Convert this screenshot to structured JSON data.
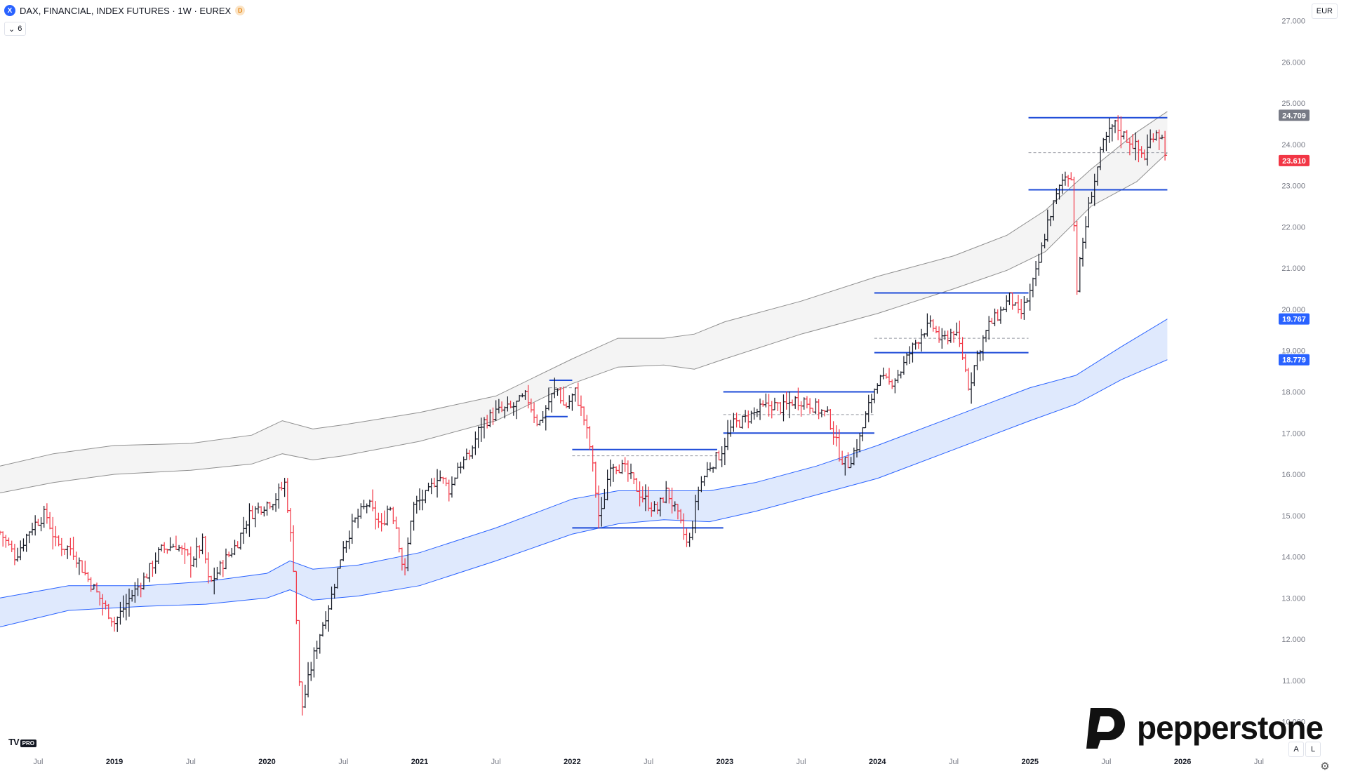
{
  "header": {
    "symbol_icon": "X",
    "title": "DAX, FINANCIAL, INDEX FUTURES · 1W · EUREX",
    "badge": "D",
    "indicator_count": "6",
    "currency": "EUR"
  },
  "branding": {
    "tv_logo": "TV",
    "tv_pro": "PRO",
    "pepperstone": "pepperstone"
  },
  "controls": {
    "auto": "A",
    "log": "L",
    "settings_icon": "gear-icon"
  },
  "colors": {
    "up": "#131722",
    "down": "#f23645",
    "blue": "#2962ff",
    "gray_band": "#8f8f8f",
    "blue_band_fill": "#dfe9fd"
  },
  "chart_data": {
    "type": "ohlc",
    "x_axis": {
      "start": 2018.25,
      "end": 2026.85,
      "ticks": [
        {
          "label": "Jul",
          "x": 2018.5
        },
        {
          "label": "2019",
          "x": 2019.0
        },
        {
          "label": "Jul",
          "x": 2019.5
        },
        {
          "label": "2020",
          "x": 2020.0
        },
        {
          "label": "Jul",
          "x": 2020.5
        },
        {
          "label": "2021",
          "x": 2021.0
        },
        {
          "label": "Jul",
          "x": 2021.5
        },
        {
          "label": "2022",
          "x": 2022.0
        },
        {
          "label": "Jul",
          "x": 2022.5
        },
        {
          "label": "2023",
          "x": 2023.0
        },
        {
          "label": "Jul",
          "x": 2023.5
        },
        {
          "label": "2024",
          "x": 2024.0
        },
        {
          "label": "Jul",
          "x": 2024.5
        },
        {
          "label": "2025",
          "x": 2025.0
        },
        {
          "label": "Jul",
          "x": 2025.5
        },
        {
          "label": "2026",
          "x": 2026.0
        },
        {
          "label": "Jul",
          "x": 2026.5
        }
      ]
    },
    "y_axis": {
      "min": 9500,
      "max": 27300,
      "ticks": [
        {
          "label": "27.000",
          "v": 27000
        },
        {
          "label": "26.000",
          "v": 26000
        },
        {
          "label": "25.000",
          "v": 25000
        },
        {
          "label": "24.000",
          "v": 24000
        },
        {
          "label": "23.000",
          "v": 23000
        },
        {
          "label": "22.000",
          "v": 22000
        },
        {
          "label": "21.000",
          "v": 21000
        },
        {
          "label": "20.000",
          "v": 20000
        },
        {
          "label": "19.000",
          "v": 19000
        },
        {
          "label": "18.000",
          "v": 18000
        },
        {
          "label": "17.000",
          "v": 17000
        },
        {
          "label": "16.000",
          "v": 16000
        },
        {
          "label": "15.000",
          "v": 15000
        },
        {
          "label": "14.000",
          "v": 14000
        },
        {
          "label": "13.000",
          "v": 13000
        },
        {
          "label": "12.000",
          "v": 12000
        },
        {
          "label": "11.000",
          "v": 11000
        },
        {
          "label": "10.000",
          "v": 10000
        }
      ]
    },
    "price_labels": [
      {
        "text": "24.709",
        "v": 24709,
        "color": "#787b86"
      },
      {
        "text": "23.610",
        "v": 23610,
        "color": "#f23645"
      },
      {
        "text": "19.767",
        "v": 19767,
        "color": "#2962ff"
      },
      {
        "text": "18.779",
        "v": 18779,
        "color": "#2962ff"
      }
    ],
    "price_path": [
      [
        2018.25,
        14600
      ],
      [
        2018.35,
        14000
      ],
      [
        2018.45,
        14700
      ],
      [
        2018.55,
        15050
      ],
      [
        2018.62,
        14300
      ],
      [
        2018.72,
        14200
      ],
      [
        2018.82,
        13500
      ],
      [
        2018.92,
        12900
      ],
      [
        2019.0,
        12400
      ],
      [
        2019.1,
        13000
      ],
      [
        2019.2,
        13500
      ],
      [
        2019.3,
        14150
      ],
      [
        2019.4,
        14300
      ],
      [
        2019.5,
        13900
      ],
      [
        2019.58,
        14350
      ],
      [
        2019.62,
        13300
      ],
      [
        2019.72,
        13900
      ],
      [
        2019.8,
        14300
      ],
      [
        2019.88,
        15000
      ],
      [
        2019.95,
        15200
      ],
      [
        2020.05,
        15400
      ],
      [
        2020.12,
        15800
      ],
      [
        2020.18,
        13500
      ],
      [
        2020.22,
        10200
      ],
      [
        2020.3,
        11500
      ],
      [
        2020.35,
        12200
      ],
      [
        2020.42,
        13000
      ],
      [
        2020.5,
        14300
      ],
      [
        2020.58,
        14900
      ],
      [
        2020.66,
        15300
      ],
      [
        2020.75,
        14700
      ],
      [
        2020.8,
        15300
      ],
      [
        2020.85,
        14700
      ],
      [
        2020.9,
        13500
      ],
      [
        2020.95,
        15200
      ],
      [
        2021.05,
        15500
      ],
      [
        2021.12,
        16000
      ],
      [
        2021.2,
        15600
      ],
      [
        2021.25,
        16200
      ],
      [
        2021.32,
        16400
      ],
      [
        2021.4,
        17200
      ],
      [
        2021.5,
        17500
      ],
      [
        2021.6,
        17600
      ],
      [
        2021.7,
        17900
      ],
      [
        2021.78,
        17200
      ],
      [
        2021.85,
        17800
      ],
      [
        2021.9,
        18100
      ],
      [
        2021.95,
        17600
      ],
      [
        2022.02,
        18000
      ],
      [
        2022.08,
        17300
      ],
      [
        2022.12,
        16600
      ],
      [
        2022.18,
        14800
      ],
      [
        2022.25,
        16300
      ],
      [
        2022.35,
        16100
      ],
      [
        2022.45,
        15500
      ],
      [
        2022.55,
        15100
      ],
      [
        2022.62,
        15600
      ],
      [
        2022.7,
        14900
      ],
      [
        2022.76,
        14200
      ],
      [
        2022.83,
        15700
      ],
      [
        2022.9,
        16200
      ],
      [
        2022.97,
        16500
      ],
      [
        2023.05,
        17200
      ],
      [
        2023.12,
        17300
      ],
      [
        2023.2,
        17500
      ],
      [
        2023.3,
        17700
      ],
      [
        2023.38,
        17600
      ],
      [
        2023.45,
        17800
      ],
      [
        2023.52,
        17800
      ],
      [
        2023.6,
        17600
      ],
      [
        2023.68,
        17400
      ],
      [
        2023.75,
        16500
      ],
      [
        2023.8,
        16200
      ],
      [
        2023.88,
        16800
      ],
      [
        2023.93,
        17500
      ],
      [
        2024.0,
        18300
      ],
      [
        2024.08,
        18200
      ],
      [
        2024.15,
        18500
      ],
      [
        2024.22,
        19000
      ],
      [
        2024.3,
        19500
      ],
      [
        2024.36,
        19600
      ],
      [
        2024.42,
        19200
      ],
      [
        2024.5,
        19500
      ],
      [
        2024.55,
        19000
      ],
      [
        2024.6,
        18100
      ],
      [
        2024.66,
        19000
      ],
      [
        2024.73,
        19600
      ],
      [
        2024.8,
        19900
      ],
      [
        2024.87,
        20300
      ],
      [
        2024.93,
        19800
      ],
      [
        2025.0,
        20400
      ],
      [
        2025.05,
        21000
      ],
      [
        2025.12,
        22200
      ],
      [
        2025.18,
        22800
      ],
      [
        2025.22,
        23200
      ],
      [
        2025.28,
        23300
      ],
      [
        2025.3,
        20300
      ],
      [
        2025.34,
        21500
      ],
      [
        2025.4,
        22800
      ],
      [
        2025.48,
        24000
      ],
      [
        2025.55,
        24500
      ],
      [
        2025.62,
        24200
      ],
      [
        2025.68,
        24000
      ],
      [
        2025.75,
        23700
      ],
      [
        2025.82,
        24400
      ],
      [
        2025.87,
        24100
      ],
      [
        2025.9,
        23610
      ]
    ],
    "bands": [
      {
        "name": "",
        "color": "#8f8f8f",
        "fill": "#f4f4f4",
        "upper": [
          [
            2018.25,
            16200
          ],
          [
            2018.6,
            16500
          ],
          [
            2019.0,
            16700
          ],
          [
            2019.5,
            16750
          ],
          [
            2019.9,
            16950
          ],
          [
            2020.1,
            17300
          ],
          [
            2020.3,
            17100
          ],
          [
            2020.5,
            17200
          ],
          [
            2021.0,
            17500
          ],
          [
            2021.5,
            17900
          ],
          [
            2022.0,
            18800
          ],
          [
            2022.3,
            19300
          ],
          [
            2022.6,
            19300
          ],
          [
            2022.8,
            19400
          ],
          [
            2023.0,
            19700
          ],
          [
            2023.5,
            20200
          ],
          [
            2024.0,
            20800
          ],
          [
            2024.5,
            21300
          ],
          [
            2024.85,
            21800
          ],
          [
            2025.1,
            22400
          ],
          [
            2025.4,
            23400
          ],
          [
            2025.7,
            24300
          ],
          [
            2025.9,
            24800
          ]
        ],
        "lower": [
          [
            2018.25,
            15550
          ],
          [
            2018.6,
            15800
          ],
          [
            2019.0,
            16000
          ],
          [
            2019.5,
            16100
          ],
          [
            2019.9,
            16250
          ],
          [
            2020.1,
            16500
          ],
          [
            2020.3,
            16350
          ],
          [
            2020.5,
            16450
          ],
          [
            2021.0,
            16800
          ],
          [
            2021.5,
            17300
          ],
          [
            2022.0,
            18200
          ],
          [
            2022.3,
            18600
          ],
          [
            2022.6,
            18650
          ],
          [
            2022.8,
            18550
          ],
          [
            2023.0,
            18800
          ],
          [
            2023.5,
            19400
          ],
          [
            2024.0,
            19900
          ],
          [
            2024.5,
            20500
          ],
          [
            2024.85,
            20950
          ],
          [
            2025.1,
            21400
          ],
          [
            2025.4,
            22500
          ],
          [
            2025.7,
            23100
          ],
          [
            2025.9,
            23800
          ]
        ]
      },
      {
        "name": "",
        "color": "#2962ff",
        "fill": "#dfe9fd",
        "upper": [
          [
            2018.25,
            13000
          ],
          [
            2018.7,
            13300
          ],
          [
            2019.2,
            13300
          ],
          [
            2019.6,
            13400
          ],
          [
            2020.0,
            13600
          ],
          [
            2020.15,
            13900
          ],
          [
            2020.3,
            13700
          ],
          [
            2020.6,
            13800
          ],
          [
            2021.0,
            14100
          ],
          [
            2021.5,
            14700
          ],
          [
            2022.0,
            15400
          ],
          [
            2022.3,
            15600
          ],
          [
            2022.6,
            15600
          ],
          [
            2022.9,
            15600
          ],
          [
            2023.2,
            15800
          ],
          [
            2023.6,
            16200
          ],
          [
            2024.0,
            16700
          ],
          [
            2024.5,
            17400
          ],
          [
            2025.0,
            18100
          ],
          [
            2025.3,
            18400
          ],
          [
            2025.6,
            19100
          ],
          [
            2025.9,
            19767
          ]
        ],
        "lower": [
          [
            2018.25,
            12300
          ],
          [
            2018.7,
            12700
          ],
          [
            2019.2,
            12800
          ],
          [
            2019.6,
            12850
          ],
          [
            2020.0,
            13000
          ],
          [
            2020.15,
            13200
          ],
          [
            2020.3,
            12950
          ],
          [
            2020.6,
            13050
          ],
          [
            2021.0,
            13300
          ],
          [
            2021.5,
            13900
          ],
          [
            2022.0,
            14550
          ],
          [
            2022.3,
            14800
          ],
          [
            2022.6,
            14900
          ],
          [
            2022.9,
            14850
          ],
          [
            2023.2,
            15100
          ],
          [
            2023.6,
            15500
          ],
          [
            2024.0,
            15900
          ],
          [
            2024.5,
            16600
          ],
          [
            2025.0,
            17300
          ],
          [
            2025.3,
            17700
          ],
          [
            2025.6,
            18300
          ],
          [
            2025.9,
            18779
          ]
        ]
      }
    ],
    "levels": [
      {
        "x1": 2021.85,
        "x2": 2022.0,
        "v": 18280,
        "style": "solid"
      },
      {
        "x1": 2021.82,
        "x2": 2021.97,
        "v": 17400,
        "style": "solid"
      },
      {
        "x1": 2021.85,
        "x2": 2022.0,
        "v": 18100,
        "style": "dashed"
      },
      {
        "x1": 2022.0,
        "x2": 2022.95,
        "v": 16600,
        "style": "solid"
      },
      {
        "x1": 2022.0,
        "x2": 2022.95,
        "v": 16450,
        "style": "dashed"
      },
      {
        "x1": 2022.0,
        "x2": 2022.99,
        "v": 14700,
        "style": "solid"
      },
      {
        "x1": 2022.99,
        "x2": 2023.98,
        "v": 18000,
        "style": "solid"
      },
      {
        "x1": 2022.99,
        "x2": 2023.98,
        "v": 17450,
        "style": "dashed"
      },
      {
        "x1": 2022.99,
        "x2": 2023.98,
        "v": 17000,
        "style": "solid"
      },
      {
        "x1": 2023.98,
        "x2": 2024.99,
        "v": 20400,
        "style": "solid"
      },
      {
        "x1": 2023.98,
        "x2": 2024.99,
        "v": 19300,
        "style": "dashed"
      },
      {
        "x1": 2023.98,
        "x2": 2024.99,
        "v": 18950,
        "style": "solid"
      },
      {
        "x1": 2024.99,
        "x2": 2025.9,
        "v": 24650,
        "style": "solid"
      },
      {
        "x1": 2024.99,
        "x2": 2025.9,
        "v": 23800,
        "style": "dashed"
      },
      {
        "x1": 2024.99,
        "x2": 2025.9,
        "v": 22900,
        "style": "solid"
      }
    ]
  }
}
